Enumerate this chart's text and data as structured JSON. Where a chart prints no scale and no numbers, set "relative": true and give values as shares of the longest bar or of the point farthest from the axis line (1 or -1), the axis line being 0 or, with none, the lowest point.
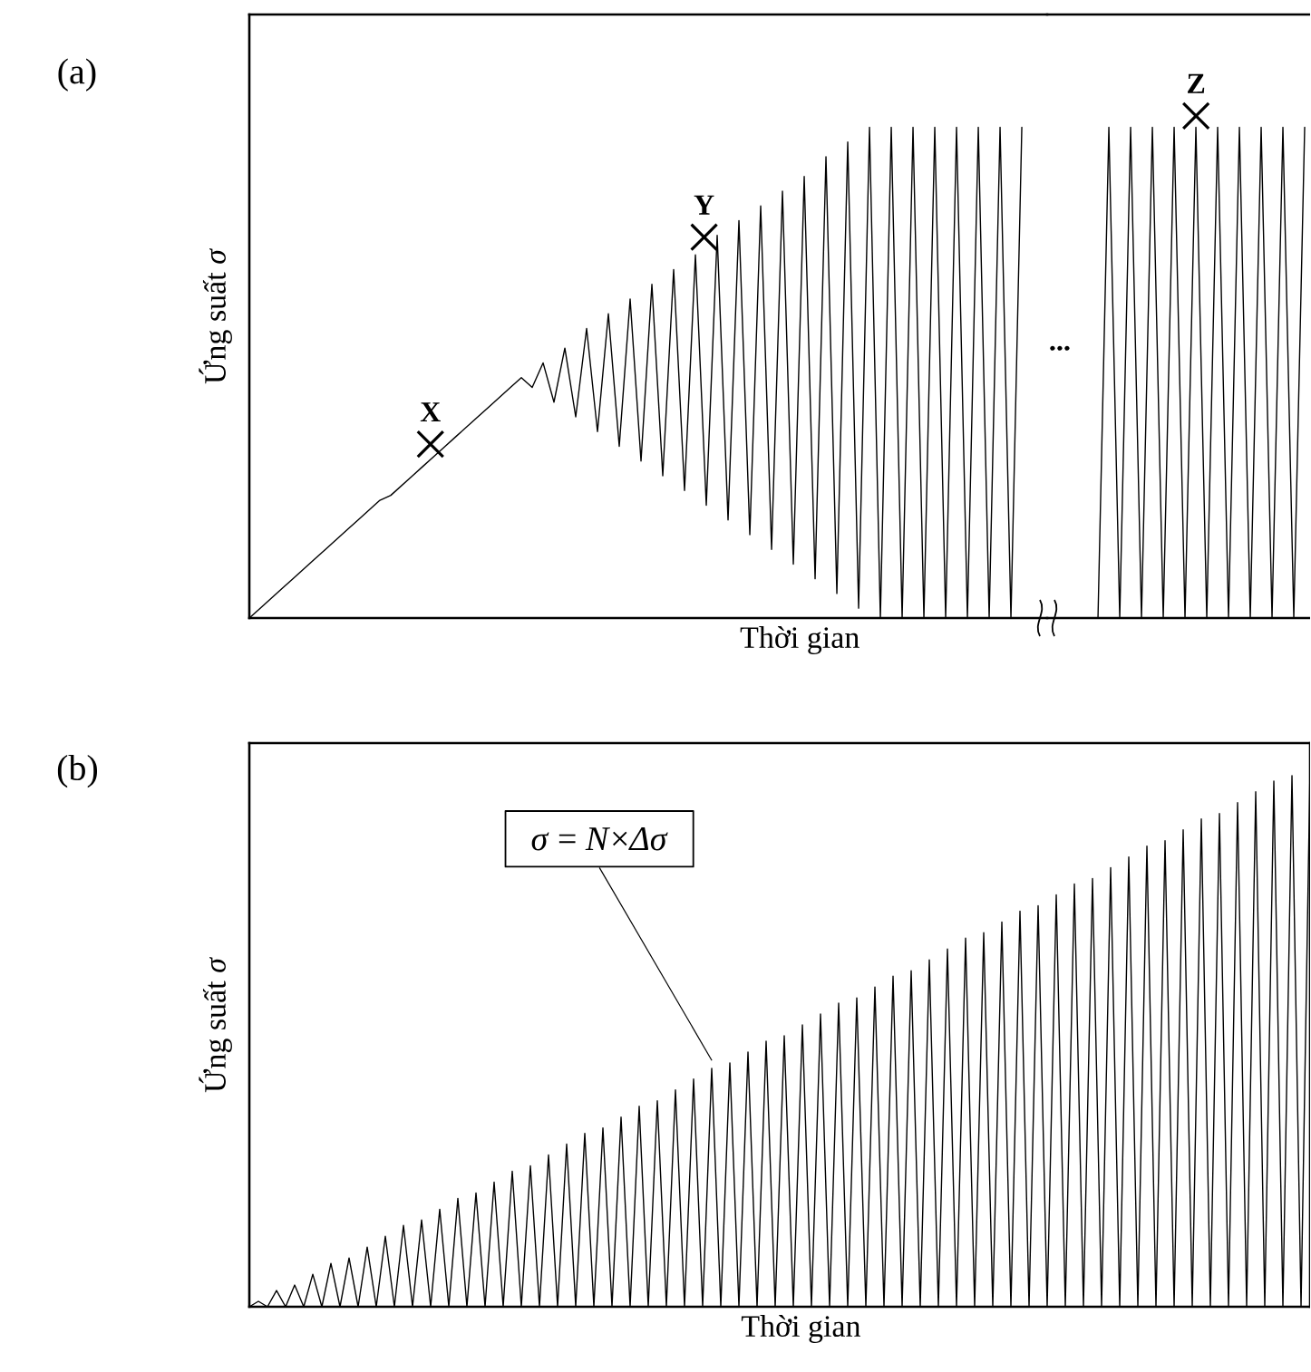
{
  "chart_data": [
    {
      "type": "line",
      "title": "(a)",
      "xlabel": "Thời gian",
      "ylabel": "Ứng suất *σ*",
      "relative": true,
      "categories": [
        null,
        null,
        null,
        null,
        null,
        null,
        null,
        null,
        null,
        null,
        null,
        null,
        null,
        null,
        null,
        null,
        null,
        null,
        null,
        null,
        null,
        null,
        null,
        null,
        null,
        null,
        null,
        null,
        null,
        null,
        null,
        null,
        null,
        null,
        null,
        null,
        null,
        null,
        null,
        null,
        null,
        null,
        null,
        null,
        null,
        null,
        null,
        null,
        null,
        null,
        null,
        null,
        null,
        null,
        null,
        null,
        null,
        null,
        null,
        null,
        null,
        null,
        null,
        null,
        null,
        null,
        null,
        null,
        null,
        null,
        null,
        null
      ],
      "series": [
        {
          "color": "#000000",
          "values": [
            0,
            0.02,
            0.04,
            0.06,
            0.08,
            0.1,
            0.12,
            0.14,
            0.16,
            0.18,
            0.2,
            0.22,
            0.24,
            0.25,
            0.27,
            0.29,
            0.31,
            0.33,
            0.35,
            0.37,
            0.39,
            0.41,
            0.43,
            0.45,
            0.47,
            0.49,
            0.47,
            0.52,
            0.44,
            0.55,
            0.41,
            0.59,
            0.38,
            0.62,
            0.35,
            0.65,
            0.32,
            0.68,
            0.29,
            0.71,
            0.26,
            0.74,
            0.23,
            0.78,
            0.2,
            0.81,
            0.17,
            0.84,
            0.14,
            0.87,
            0.11,
            0.9,
            0.08,
            0.94,
            0.05,
            0.97,
            0.02,
            1,
            0,
            1,
            0,
            1,
            0,
            1,
            0,
            1,
            0,
            1,
            0,
            1,
            0,
            1
          ]
        }
      ],
      "annotations": [
        "X",
        "Y"
      ]
    },
    {
      "type": "line",
      "relative": true,
      "categories": [
        null,
        null,
        null,
        null,
        null,
        null,
        null,
        null,
        null,
        null,
        null,
        null,
        null,
        null,
        null,
        null,
        null,
        null,
        null,
        null
      ],
      "series": [
        {
          "color": "#000000",
          "values": [
            0,
            1,
            0,
            1,
            0,
            1,
            0,
            1,
            0,
            1,
            0,
            1,
            0,
            1,
            0,
            1,
            0,
            1,
            0,
            1
          ]
        }
      ],
      "annotations": [
        "Z",
        "..."
      ]
    },
    {
      "type": "line",
      "title": "(b)",
      "xlabel": "Thời gian",
      "ylabel": "Ứng suất *σ*",
      "relative": true,
      "categories": [
        null,
        null,
        null,
        null,
        null,
        null,
        null,
        null,
        null,
        null,
        null,
        null,
        null,
        null,
        null,
        null,
        null,
        null,
        null,
        null,
        null,
        null,
        null,
        null,
        null,
        null,
        null,
        null,
        null,
        null,
        null,
        null,
        null,
        null,
        null,
        null,
        null,
        null,
        null,
        null,
        null,
        null,
        null,
        null,
        null,
        null,
        null,
        null,
        null,
        null,
        null,
        null,
        null,
        null,
        null,
        null,
        null,
        null,
        null,
        null,
        null,
        null,
        null,
        null,
        null,
        null,
        null,
        null,
        null,
        null,
        null,
        null,
        null,
        null,
        null,
        null,
        null,
        null,
        null,
        null,
        null,
        null,
        null,
        null,
        null,
        null,
        null,
        null,
        null,
        null,
        null,
        null,
        null,
        null,
        null,
        null,
        null,
        null,
        null,
        null,
        null,
        null,
        null,
        null,
        null,
        null,
        null,
        null,
        null,
        null,
        null,
        null,
        null,
        null,
        null,
        null,
        null,
        null
      ],
      "series": [
        {
          "color": "#000000",
          "values": [
            0,
            0.01,
            0,
            0.03,
            0,
            0.04,
            0,
            0.06,
            0,
            0.08,
            0,
            0.09,
            0,
            0.11,
            0,
            0.13,
            0,
            0.15,
            0,
            0.16,
            0,
            0.18,
            0,
            0.2,
            0,
            0.21,
            0,
            0.23,
            0,
            0.25,
            0,
            0.26,
            0,
            0.28,
            0,
            0.3,
            0,
            0.32,
            0,
            0.33,
            0,
            0.35,
            0,
            0.37,
            0,
            0.38,
            0,
            0.4,
            0,
            0.42,
            0,
            0.44,
            0,
            0.45,
            0,
            0.47,
            0,
            0.49,
            0,
            0.5,
            0,
            0.52,
            0,
            0.54,
            0,
            0.56,
            0,
            0.57,
            0,
            0.59,
            0,
            0.61,
            0,
            0.62,
            0,
            0.64,
            0,
            0.66,
            0,
            0.68,
            0,
            0.69,
            0,
            0.71,
            0,
            0.73,
            0,
            0.74,
            0,
            0.76,
            0,
            0.78,
            0,
            0.79,
            0,
            0.81,
            0,
            0.83,
            0,
            0.85,
            0,
            0.86,
            0,
            0.88,
            0,
            0.9,
            0,
            0.91,
            0,
            0.93,
            0,
            0.95,
            0,
            0.97,
            0,
            0.98,
            0,
            1.0
          ]
        }
      ],
      "annotations": [
        "*σ* = *N*×*Δσ*"
      ]
    }
  ]
}
